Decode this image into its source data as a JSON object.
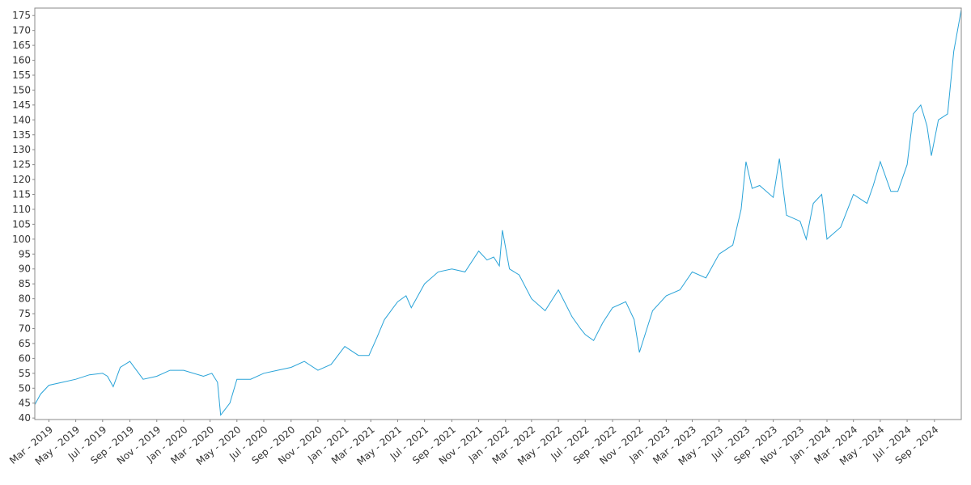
{
  "chart_data": {
    "type": "line",
    "title": "",
    "xlabel": "",
    "ylabel": "",
    "grid": false,
    "legend": "none",
    "line_color": "#29a3d8",
    "frame_color": "#888888",
    "xlim": [
      "2019-01-28",
      "2024-11-01"
    ],
    "ylim": [
      39.5,
      177.5
    ],
    "y_ticks": [
      40,
      45,
      50,
      55,
      60,
      65,
      70,
      75,
      80,
      85,
      90,
      95,
      100,
      105,
      110,
      115,
      120,
      125,
      130,
      135,
      140,
      145,
      150,
      155,
      160,
      165,
      170,
      175
    ],
    "x_ticks": [
      {
        "date": "2019-03-01",
        "label": "Mar - 2019"
      },
      {
        "date": "2019-05-01",
        "label": "May - 2019"
      },
      {
        "date": "2019-07-01",
        "label": "Jul - 2019"
      },
      {
        "date": "2019-09-01",
        "label": "Sep - 2019"
      },
      {
        "date": "2019-11-01",
        "label": "Nov - 2019"
      },
      {
        "date": "2020-01-01",
        "label": "Jan - 2020"
      },
      {
        "date": "2020-03-01",
        "label": "Mar - 2020"
      },
      {
        "date": "2020-05-01",
        "label": "May - 2020"
      },
      {
        "date": "2020-07-01",
        "label": "Jul - 2020"
      },
      {
        "date": "2020-09-01",
        "label": "Sep - 2020"
      },
      {
        "date": "2020-11-01",
        "label": "Nov - 2020"
      },
      {
        "date": "2021-01-01",
        "label": "Jan - 2021"
      },
      {
        "date": "2021-03-01",
        "label": "Mar - 2021"
      },
      {
        "date": "2021-05-01",
        "label": "May - 2021"
      },
      {
        "date": "2021-07-01",
        "label": "Jul - 2021"
      },
      {
        "date": "2021-09-01",
        "label": "Sep - 2021"
      },
      {
        "date": "2021-11-01",
        "label": "Nov - 2021"
      },
      {
        "date": "2022-01-01",
        "label": "Jan - 2022"
      },
      {
        "date": "2022-03-01",
        "label": "Mar - 2022"
      },
      {
        "date": "2022-05-01",
        "label": "May - 2022"
      },
      {
        "date": "2022-07-01",
        "label": "Jul - 2022"
      },
      {
        "date": "2022-09-01",
        "label": "Sep - 2022"
      },
      {
        "date": "2022-11-01",
        "label": "Nov - 2022"
      },
      {
        "date": "2023-01-01",
        "label": "Jan - 2023"
      },
      {
        "date": "2023-03-01",
        "label": "Mar - 2023"
      },
      {
        "date": "2023-05-01",
        "label": "May - 2023"
      },
      {
        "date": "2023-07-01",
        "label": "Jul - 2023"
      },
      {
        "date": "2023-09-01",
        "label": "Sep - 2023"
      },
      {
        "date": "2023-11-01",
        "label": "Nov - 2023"
      },
      {
        "date": "2024-01-01",
        "label": "Jan - 2024"
      },
      {
        "date": "2024-03-01",
        "label": "Mar - 2024"
      },
      {
        "date": "2024-05-01",
        "label": "May - 2024"
      },
      {
        "date": "2024-07-01",
        "label": "Jul - 2024"
      },
      {
        "date": "2024-09-01",
        "label": "Sep - 2024"
      }
    ],
    "series": [
      {
        "x": [
          "2019-01-28",
          "2019-02-10",
          "2019-03-01",
          "2019-04-01",
          "2019-05-01",
          "2019-06-01",
          "2019-07-01",
          "2019-07-12",
          "2019-07-25",
          "2019-08-10",
          "2019-09-01",
          "2019-10-01",
          "2019-11-01",
          "2019-12-01",
          "2020-01-01",
          "2020-02-15",
          "2020-03-05",
          "2020-03-18",
          "2020-03-25",
          "2020-04-15",
          "2020-05-01",
          "2020-06-01",
          "2020-07-01",
          "2020-08-01",
          "2020-09-01",
          "2020-10-01",
          "2020-11-01",
          "2020-12-01",
          "2021-01-01",
          "2021-02-01",
          "2021-02-25",
          "2021-03-15",
          "2021-04-01",
          "2021-05-01",
          "2021-05-20",
          "2021-06-01",
          "2021-07-01",
          "2021-08-01",
          "2021-09-01",
          "2021-10-01",
          "2021-11-01",
          "2021-11-20",
          "2021-12-05",
          "2021-12-18",
          "2021-12-25",
          "2022-01-10",
          "2022-02-01",
          "2022-03-01",
          "2022-04-01",
          "2022-05-01",
          "2022-06-01",
          "2022-06-20",
          "2022-07-01",
          "2022-07-20",
          "2022-08-10",
          "2022-09-01",
          "2022-10-01",
          "2022-10-20",
          "2022-11-01",
          "2022-12-01",
          "2023-01-01",
          "2023-02-01",
          "2023-03-01",
          "2023-04-01",
          "2023-05-01",
          "2023-06-01",
          "2023-06-20",
          "2023-07-01",
          "2023-07-15",
          "2023-08-01",
          "2023-09-01",
          "2023-09-15",
          "2023-10-01",
          "2023-11-01",
          "2023-11-15",
          "2023-12-01",
          "2023-12-20",
          "2024-01-01",
          "2024-02-01",
          "2024-03-01",
          "2024-04-01",
          "2024-04-15",
          "2024-05-01",
          "2024-05-25",
          "2024-06-10",
          "2024-07-01",
          "2024-07-15",
          "2024-08-01",
          "2024-08-15",
          "2024-08-25",
          "2024-09-10",
          "2024-10-01",
          "2024-10-15",
          "2024-11-01"
        ],
        "y": [
          44.5,
          48,
          51,
          52,
          53,
          54.5,
          55,
          54,
          50.5,
          57,
          59,
          53,
          54,
          56,
          56,
          54,
          55,
          52,
          41,
          45,
          53,
          53,
          55,
          56,
          57,
          59,
          56,
          58,
          64,
          61,
          61,
          67,
          73,
          79,
          81,
          77,
          85,
          89,
          90,
          89,
          96,
          93,
          94,
          91,
          103,
          90,
          88,
          80,
          76,
          83,
          74,
          70,
          68,
          66,
          72,
          77,
          79,
          73,
          62,
          76,
          81,
          83,
          89,
          87,
          95,
          98,
          110,
          126,
          117,
          118,
          114,
          127,
          108,
          106,
          100,
          112,
          115,
          100,
          104,
          115,
          112,
          118,
          126,
          116,
          116,
          125,
          142,
          145,
          138,
          128,
          140,
          142,
          163,
          177
        ]
      }
    ]
  }
}
